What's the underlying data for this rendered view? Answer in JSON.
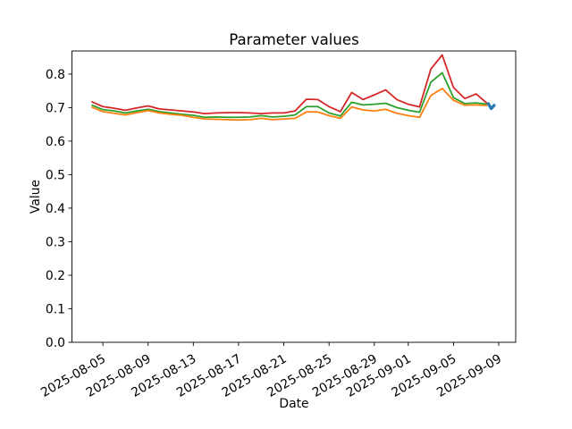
{
  "figure": {
    "background": "#ffffff",
    "text_color": "#000000"
  },
  "chart_data": {
    "type": "line",
    "title": "Parameter values",
    "xlabel": "Date",
    "ylabel": "Value",
    "grid": false,
    "legend": null,
    "ylim": [
      0.0,
      0.869
    ],
    "y_ticks": [
      0.0,
      0.1,
      0.2,
      0.3,
      0.4,
      0.5,
      0.6,
      0.7,
      0.8
    ],
    "x_start_date": "2025-08-04",
    "x_domain_days": [
      -1.73,
      37.5
    ],
    "x_tick_day_offsets": [
      1,
      5,
      9,
      13,
      17,
      21,
      25,
      28,
      32,
      36
    ],
    "x_tick_labels": [
      "2025-08-05",
      "2025-08-09",
      "2025-08-13",
      "2025-08-17",
      "2025-08-21",
      "2025-08-25",
      "2025-08-29",
      "2025-09-01",
      "2025-09-05",
      "2025-09-09"
    ],
    "x_tick_rotation_deg": -30,
    "dates": [
      "2025-08-04",
      "2025-08-05",
      "2025-08-06",
      "2025-08-07",
      "2025-08-08",
      "2025-08-09",
      "2025-08-10",
      "2025-08-11",
      "2025-08-12",
      "2025-08-13",
      "2025-08-14",
      "2025-08-15",
      "2025-08-16",
      "2025-08-17",
      "2025-08-18",
      "2025-08-19",
      "2025-08-20",
      "2025-08-21",
      "2025-08-22",
      "2025-08-23",
      "2025-08-24",
      "2025-08-25",
      "2025-08-26",
      "2025-08-27",
      "2025-08-28",
      "2025-08-29",
      "2025-08-30",
      "2025-08-31",
      "2025-09-01",
      "2025-09-02",
      "2025-09-03",
      "2025-09-04",
      "2025-09-05",
      "2025-09-06",
      "2025-09-07",
      "2025-09-08"
    ],
    "series": [
      {
        "name": "red-line",
        "color": "#d62728",
        "line_width": 1.8,
        "values": [
          0.718,
          0.703,
          0.698,
          0.692,
          0.699,
          0.705,
          0.696,
          0.693,
          0.69,
          0.687,
          0.682,
          0.684,
          0.685,
          0.685,
          0.684,
          0.682,
          0.684,
          0.684,
          0.69,
          0.725,
          0.724,
          0.703,
          0.688,
          0.745,
          0.724,
          0.738,
          0.753,
          0.724,
          0.71,
          0.702,
          0.815,
          0.857,
          0.76,
          0.727,
          0.741,
          0.712
        ]
      },
      {
        "name": "green-line",
        "color": "#2ca02c",
        "line_width": 1.8,
        "values": [
          0.708,
          0.694,
          0.69,
          0.684,
          0.69,
          0.695,
          0.688,
          0.684,
          0.68,
          0.677,
          0.671,
          0.672,
          0.671,
          0.671,
          0.672,
          0.676,
          0.672,
          0.674,
          0.678,
          0.703,
          0.703,
          0.684,
          0.675,
          0.716,
          0.708,
          0.71,
          0.713,
          0.7,
          0.692,
          0.686,
          0.776,
          0.804,
          0.73,
          0.712,
          0.714,
          0.71
        ]
      },
      {
        "name": "orange-line",
        "color": "#ff7f0e",
        "line_width": 1.8,
        "values": [
          0.702,
          0.688,
          0.683,
          0.678,
          0.685,
          0.691,
          0.684,
          0.68,
          0.677,
          0.671,
          0.666,
          0.665,
          0.664,
          0.663,
          0.664,
          0.668,
          0.664,
          0.666,
          0.668,
          0.687,
          0.687,
          0.676,
          0.668,
          0.702,
          0.693,
          0.69,
          0.695,
          0.683,
          0.676,
          0.671,
          0.736,
          0.757,
          0.722,
          0.707,
          0.708,
          0.706
        ]
      }
    ],
    "extra_series": {
      "name": "blue-end-marker",
      "color": "#1f77b4",
      "line_width": 3.2,
      "day_offsets": [
        35.08,
        35.34,
        35.6
      ],
      "values": [
        0.712,
        0.697,
        0.707
      ]
    }
  }
}
